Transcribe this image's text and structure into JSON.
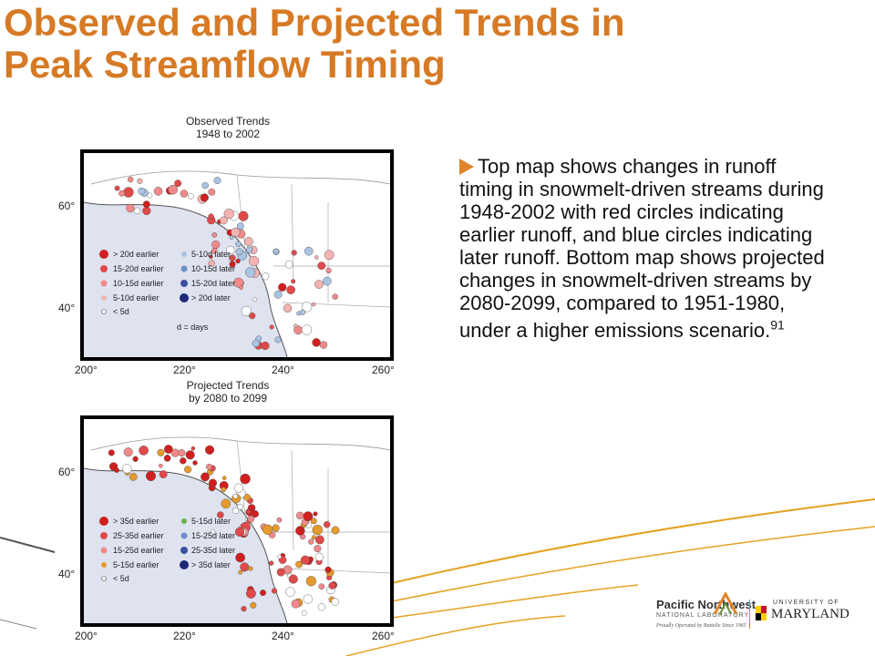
{
  "title": {
    "line1": "Observed and Projected Trends in",
    "line2": "Peak Streamflow Timing"
  },
  "maps": [
    {
      "heading_line1": "Observed Trends",
      "heading_line2": "1948 to 2002",
      "x_ticks": [
        "200°",
        "220°",
        "240°",
        "260°"
      ],
      "y_ticks": [
        "60°",
        "40°"
      ],
      "legend_left": [
        "> 20d earlier",
        "15-20d earlier",
        "10-15d earlier",
        "5-10d earlier",
        "< 5d"
      ],
      "legend_right": [
        "5-10d later",
        "10-15d later",
        "15-20d later",
        "> 20d later"
      ],
      "legend_note": "d = days"
    },
    {
      "heading_line1": "Projected Trends",
      "heading_line2": "by 2080 to 2099",
      "x_ticks": [
        "200°",
        "220°",
        "240°",
        "260°"
      ],
      "y_ticks": [
        "60°",
        "40°"
      ],
      "legend_left": [
        "> 35d earlier",
        "25-35d earlier",
        "15-25d earlier",
        "5-15d earlier",
        "< 5d"
      ],
      "legend_right": [
        "5-15d later",
        "15-25d later",
        "25-35d later",
        "> 35d later"
      ],
      "legend_note": ""
    }
  ],
  "bullet": {
    "text": "Top map shows changes in runoff timing in snowmelt-driven streams during 1948-2002 with red circles indicating earlier runoff, and blue circles indicating later runoff. Bottom map shows projected changes in snowmelt-driven streams by 2080-2099, compared to 1951-1980, under a higher emissions scenario.",
    "footnote": "91"
  },
  "logos": {
    "pnnl_name": "Pacific Northwest",
    "pnnl_sub": "NATIONAL LABORATORY",
    "pnnl_tag": "Proudly Operated by Battelle Since 1965",
    "umd_top": "UNIVERSITY OF",
    "umd_name": "MARYLAND"
  },
  "colors": {
    "title": "#d67a25",
    "accent": "#e0842b",
    "ocean": "#dfe3f0",
    "earlier_strong": "#d11f1f",
    "earlier_medium": "#e04a4a",
    "earlier_light": "#f08a8a",
    "earlier_faint": "#f4b3b3",
    "neutral": "#ffffff",
    "later_light": "#a9c4e4",
    "later_medium": "#6f8fc7",
    "later_strong": "#3b4fa0",
    "later_deep": "#1e2a78",
    "proj_light": "#e59a2c",
    "proj_green": "#6cb04c"
  }
}
